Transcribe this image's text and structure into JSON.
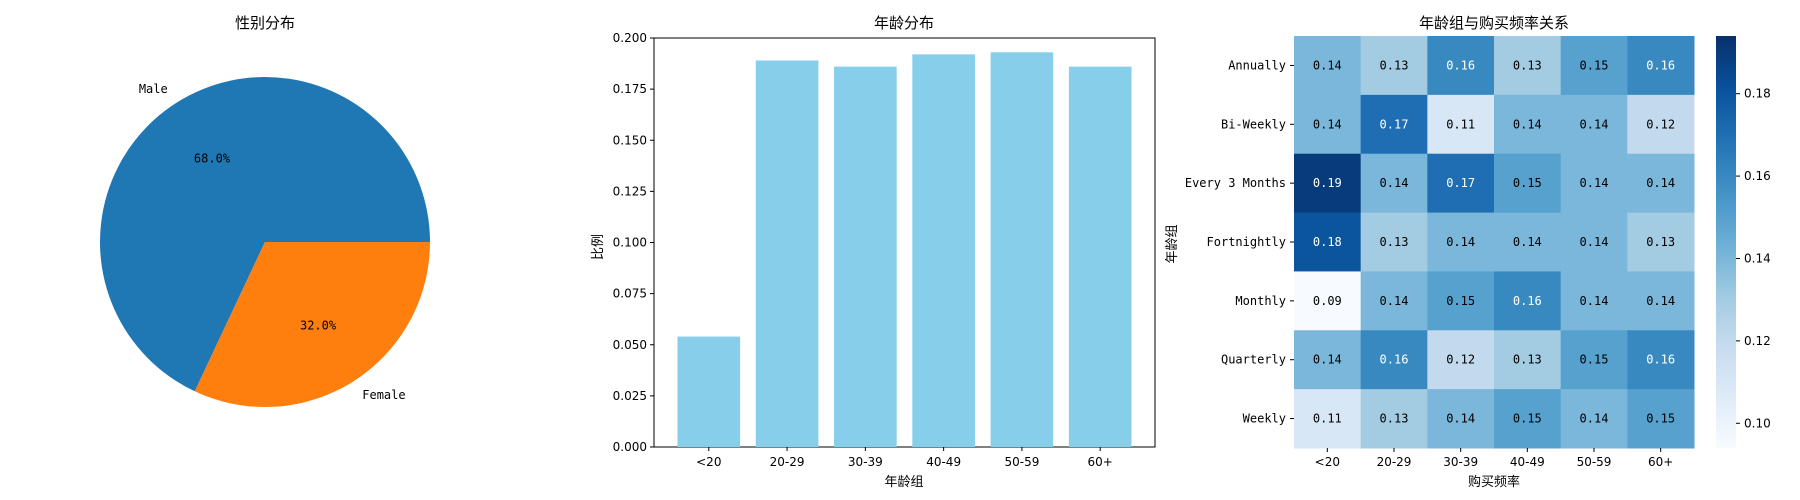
{
  "chart_data": [
    {
      "type": "pie",
      "title": "性别分布",
      "labels": [
        "Male",
        "Female"
      ],
      "values": [
        68.0,
        32.0
      ],
      "pct_labels": [
        "68.0%",
        "32.0%"
      ],
      "colors": [
        "#1f77b4",
        "#ff7f0e"
      ]
    },
    {
      "type": "bar",
      "title": "年龄分布",
      "xlabel": "年龄组",
      "ylabel": "比例",
      "categories": [
        "<20",
        "20-29",
        "30-39",
        "40-49",
        "50-59",
        "60+"
      ],
      "values": [
        0.054,
        0.189,
        0.186,
        0.192,
        0.193,
        0.186
      ],
      "ylim": [
        0,
        0.2
      ],
      "yticks": [
        "0.000",
        "0.025",
        "0.050",
        "0.075",
        "0.100",
        "0.125",
        "0.150",
        "0.175",
        "0.200"
      ],
      "color": "#87ceeb"
    },
    {
      "type": "heatmap",
      "title": "年龄组与购买频率关系",
      "xlabel": "购买频率",
      "ylabel": "年龄组",
      "x_categories": [
        "<20",
        "20-29",
        "30-39",
        "40-49",
        "50-59",
        "60+"
      ],
      "y_categories": [
        "Annually",
        "Bi-Weekly",
        "Every 3 Months",
        "Fortnightly",
        "Monthly",
        "Quarterly",
        "Weekly"
      ],
      "values": [
        [
          0.14,
          0.13,
          0.16,
          0.13,
          0.15,
          0.16
        ],
        [
          0.14,
          0.17,
          0.11,
          0.14,
          0.14,
          0.12
        ],
        [
          0.19,
          0.14,
          0.17,
          0.15,
          0.14,
          0.14
        ],
        [
          0.18,
          0.13,
          0.14,
          0.14,
          0.14,
          0.13
        ],
        [
          0.09,
          0.14,
          0.15,
          0.16,
          0.14,
          0.14
        ],
        [
          0.14,
          0.16,
          0.12,
          0.13,
          0.15,
          0.16
        ],
        [
          0.11,
          0.13,
          0.14,
          0.15,
          0.14,
          0.15
        ]
      ],
      "colorbar_range": [
        0.094,
        0.194
      ],
      "colorbar_ticks": [
        "0.10",
        "0.12",
        "0.14",
        "0.16",
        "0.18"
      ],
      "colormap": "Blues"
    }
  ]
}
